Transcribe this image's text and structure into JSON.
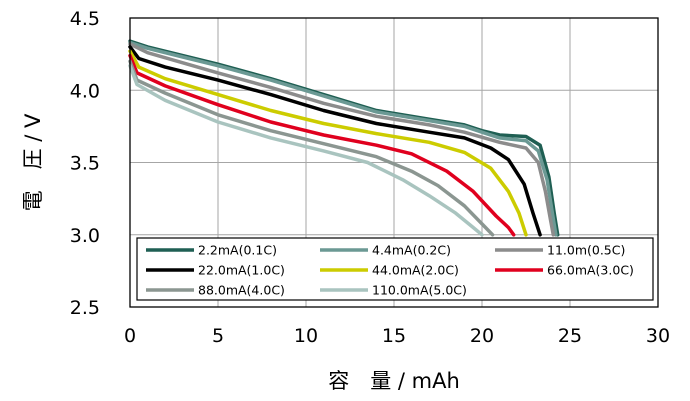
{
  "chart_data": {
    "type": "line",
    "title": "",
    "xlabel": "容　量 / mAh",
    "ylabel": "電　圧 / V",
    "xlim": [
      0,
      30
    ],
    "ylim": [
      2.5,
      4.5
    ],
    "x_ticks": [
      "0",
      "5",
      "10",
      "15",
      "20",
      "25",
      "30"
    ],
    "y_ticks": [
      "2.5",
      "3.0",
      "3.5",
      "4.0",
      "4.5"
    ],
    "grid": true,
    "legend_position": "bottom",
    "series": [
      {
        "name": "2.2mA(0.1C)",
        "color": "#1f5f53",
        "points": [
          [
            0,
            4.34
          ],
          [
            1,
            4.3
          ],
          [
            3,
            4.24
          ],
          [
            5,
            4.18
          ],
          [
            8,
            4.08
          ],
          [
            11,
            3.97
          ],
          [
            14,
            3.86
          ],
          [
            17,
            3.8
          ],
          [
            19,
            3.76
          ],
          [
            20,
            3.72
          ],
          [
            21,
            3.69
          ],
          [
            22.5,
            3.68
          ],
          [
            23.3,
            3.62
          ],
          [
            23.8,
            3.4
          ],
          [
            24.1,
            3.15
          ],
          [
            24.3,
            3.0
          ]
        ]
      },
      {
        "name": "4.4mA(0.2C)",
        "color": "#6b9994",
        "points": [
          [
            0,
            4.33
          ],
          [
            1,
            4.29
          ],
          [
            3,
            4.23
          ],
          [
            5,
            4.17
          ],
          [
            8,
            4.07
          ],
          [
            11,
            3.96
          ],
          [
            14,
            3.85
          ],
          [
            17,
            3.79
          ],
          [
            19,
            3.75
          ],
          [
            20,
            3.71
          ],
          [
            21,
            3.67
          ],
          [
            22.5,
            3.65
          ],
          [
            23.2,
            3.58
          ],
          [
            23.7,
            3.38
          ],
          [
            24,
            3.15
          ],
          [
            24.2,
            3.0
          ]
        ]
      },
      {
        "name": "11.0m(0.5C)",
        "color": "#8c8c8c",
        "points": [
          [
            0,
            4.32
          ],
          [
            1,
            4.26
          ],
          [
            3,
            4.19
          ],
          [
            5,
            4.12
          ],
          [
            8,
            4.02
          ],
          [
            11,
            3.91
          ],
          [
            14,
            3.82
          ],
          [
            17,
            3.76
          ],
          [
            19,
            3.71
          ],
          [
            21,
            3.64
          ],
          [
            22.5,
            3.6
          ],
          [
            23.2,
            3.5
          ],
          [
            23.6,
            3.3
          ],
          [
            23.9,
            3.1
          ],
          [
            24.05,
            3.0
          ]
        ]
      },
      {
        "name": "22.0mA(1.0C)",
        "color": "#000000",
        "points": [
          [
            0,
            4.3
          ],
          [
            0.5,
            4.22
          ],
          [
            2,
            4.16
          ],
          [
            5,
            4.07
          ],
          [
            8,
            3.97
          ],
          [
            11,
            3.86
          ],
          [
            14,
            3.77
          ],
          [
            17,
            3.71
          ],
          [
            19,
            3.67
          ],
          [
            20.5,
            3.6
          ],
          [
            21.5,
            3.52
          ],
          [
            22.4,
            3.35
          ],
          [
            22.9,
            3.15
          ],
          [
            23.3,
            3.0
          ]
        ]
      },
      {
        "name": "44.0mA(2.0C)",
        "color": "#cccc00",
        "points": [
          [
            0,
            4.27
          ],
          [
            0.5,
            4.16
          ],
          [
            2,
            4.08
          ],
          [
            5,
            3.97
          ],
          [
            8,
            3.86
          ],
          [
            11,
            3.77
          ],
          [
            14,
            3.7
          ],
          [
            17,
            3.64
          ],
          [
            19,
            3.57
          ],
          [
            20.5,
            3.46
          ],
          [
            21.5,
            3.3
          ],
          [
            22.1,
            3.15
          ],
          [
            22.5,
            3.0
          ]
        ]
      },
      {
        "name": "66.0mA(3.0C)",
        "color": "#e0001e",
        "points": [
          [
            0,
            4.24
          ],
          [
            0.4,
            4.12
          ],
          [
            2,
            4.03
          ],
          [
            5,
            3.9
          ],
          [
            8,
            3.78
          ],
          [
            11,
            3.69
          ],
          [
            14,
            3.62
          ],
          [
            16,
            3.56
          ],
          [
            18,
            3.44
          ],
          [
            19.5,
            3.3
          ],
          [
            20.8,
            3.13
          ],
          [
            21.5,
            3.05
          ],
          [
            21.8,
            3.0
          ]
        ]
      },
      {
        "name": "88.0mA(4.0C)",
        "color": "#8b9691",
        "points": [
          [
            0,
            4.2
          ],
          [
            0.4,
            4.07
          ],
          [
            2,
            3.98
          ],
          [
            5,
            3.83
          ],
          [
            8,
            3.72
          ],
          [
            11,
            3.63
          ],
          [
            14,
            3.54
          ],
          [
            16,
            3.44
          ],
          [
            17.5,
            3.34
          ],
          [
            19,
            3.2
          ],
          [
            20.2,
            3.05
          ],
          [
            20.6,
            3.0
          ]
        ]
      },
      {
        "name": "110.0mA(5.0C)",
        "color": "#a9c4bf",
        "points": [
          [
            0,
            4.17
          ],
          [
            0.4,
            4.04
          ],
          [
            2,
            3.93
          ],
          [
            5,
            3.78
          ],
          [
            8,
            3.67
          ],
          [
            11,
            3.58
          ],
          [
            13.5,
            3.5
          ],
          [
            15.5,
            3.38
          ],
          [
            17,
            3.27
          ],
          [
            18.5,
            3.15
          ],
          [
            19.5,
            3.05
          ],
          [
            20,
            3.0
          ]
        ]
      }
    ]
  }
}
